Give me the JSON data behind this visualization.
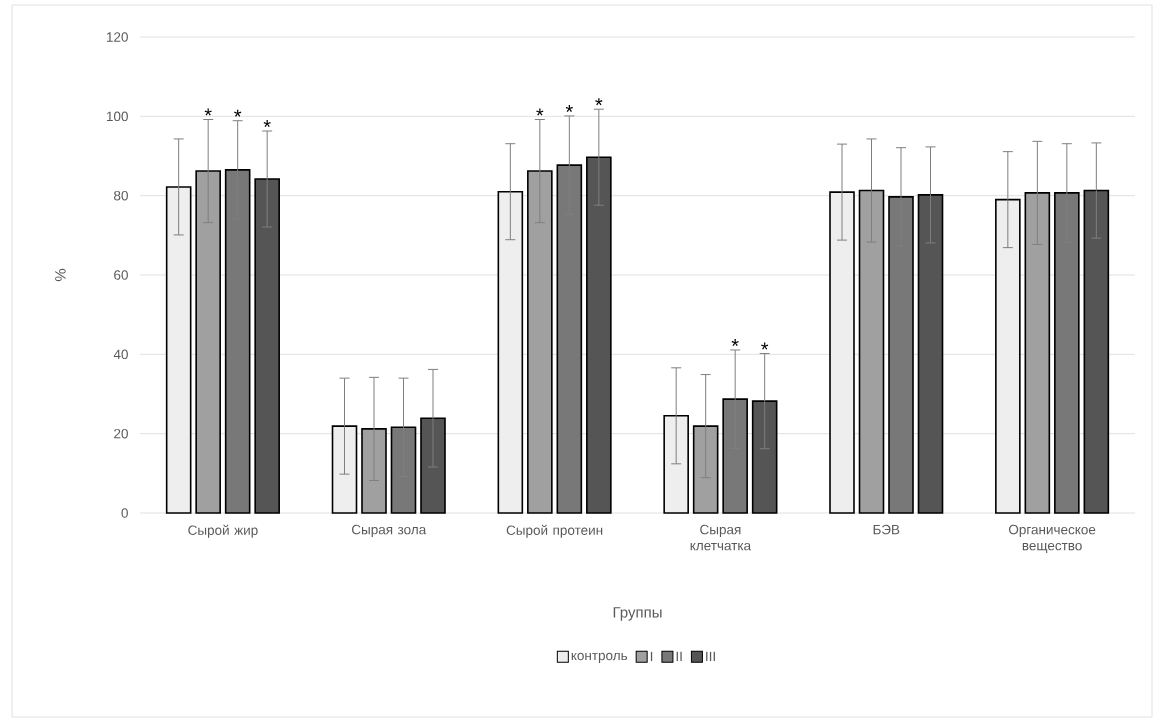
{
  "chart_data": {
    "type": "bar",
    "xlabel": "Группы",
    "ylabel": "%",
    "categories": [
      "Сырой жир",
      "Сырая зола",
      "Сырой протеин",
      "Сырая клетчатка",
      "БЭВ",
      "Органическое вещество"
    ],
    "series": [
      {
        "name": "контроль",
        "color": "#eeeeee",
        "values": [
          82.2,
          21.9,
          81.0,
          24.5,
          80.9,
          79.0
        ],
        "errors": [
          12.1,
          12.1,
          12.1,
          12.1,
          12.1,
          12.1
        ]
      },
      {
        "name": "I",
        "color": "#a0a0a0",
        "values": [
          86.2,
          21.2,
          86.2,
          21.9,
          81.3,
          80.7
        ],
        "errors": [
          13,
          13,
          13,
          13,
          13,
          13
        ],
        "value_labels": [
          "*",
          null,
          "*",
          null,
          null,
          null
        ]
      },
      {
        "name": "II",
        "color": "#787878",
        "values": [
          86.5,
          21.6,
          87.7,
          28.7,
          79.7,
          80.7
        ],
        "errors": [
          12.4,
          12.4,
          12.4,
          12.4,
          12.4,
          12.4
        ],
        "value_labels": [
          "*",
          null,
          "*",
          "*",
          null,
          null
        ]
      },
      {
        "name": "III",
        "color": "#555555",
        "values": [
          84.2,
          23.9,
          89.7,
          28.2,
          80.2,
          81.3
        ],
        "errors": [
          12.1,
          12.3,
          12.1,
          12.0,
          12.1,
          12.0
        ],
        "value_labels": [
          "*",
          null,
          "*",
          "*",
          null,
          null
        ]
      }
    ],
    "ylim": [
      0,
      120
    ],
    "yticks": [
      0,
      20,
      40,
      60,
      80,
      100,
      120
    ],
    "grid": "y",
    "legend": "bottom"
  }
}
